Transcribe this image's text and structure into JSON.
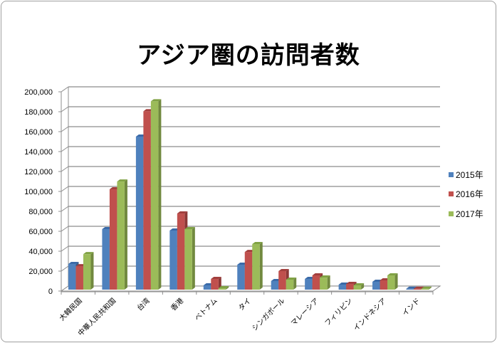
{
  "chart_data": {
    "type": "bar",
    "style": "3d-clustered-column",
    "title": "アジア圏の訪問者数",
    "xlabel": "",
    "ylabel": "",
    "ylim": [
      0,
      200000
    ],
    "yticks": [
      "0",
      "20,000",
      "40,000",
      "60,000",
      "80,000",
      "100,000",
      "120,000",
      "140,000",
      "160,000",
      "180,000",
      "200,000"
    ],
    "grid": true,
    "legend_position": "right",
    "categories": [
      "大韓民国",
      "中華人民共和国",
      "台湾",
      "香港",
      "ベトナム",
      "タイ",
      "シンガポール",
      "マレーシア",
      "フィリピン",
      "インドネシア",
      "インド"
    ],
    "series": [
      {
        "name": "2015年",
        "color": "#4F81BD",
        "side": "#385D8A",
        "top": "#3A6AA8",
        "values": [
          25700,
          60700,
          153600,
          59300,
          4300,
          25000,
          8600,
          10700,
          5000,
          7900,
          700
        ]
      },
      {
        "name": "2016年",
        "color": "#C0504D",
        "side": "#8C3836",
        "top": "#A23F3D",
        "values": [
          23500,
          100700,
          179000,
          76400,
          10700,
          37800,
          18600,
          14300,
          5700,
          9300,
          800
        ]
      },
      {
        "name": "2017年",
        "color": "#9BBB59",
        "side": "#71893F",
        "top": "#80A244",
        "values": [
          35600,
          108500,
          189000,
          60700,
          1400,
          45700,
          10000,
          12100,
          4300,
          14300,
          800
        ]
      }
    ]
  },
  "header": {
    "title": "アジア圏の訪問者数"
  },
  "legend": {
    "items": [
      {
        "label": "2015年",
        "color": "#4F81BD"
      },
      {
        "label": "2016年",
        "color": "#C0504D"
      },
      {
        "label": "2017年",
        "color": "#9BBB59"
      }
    ]
  }
}
